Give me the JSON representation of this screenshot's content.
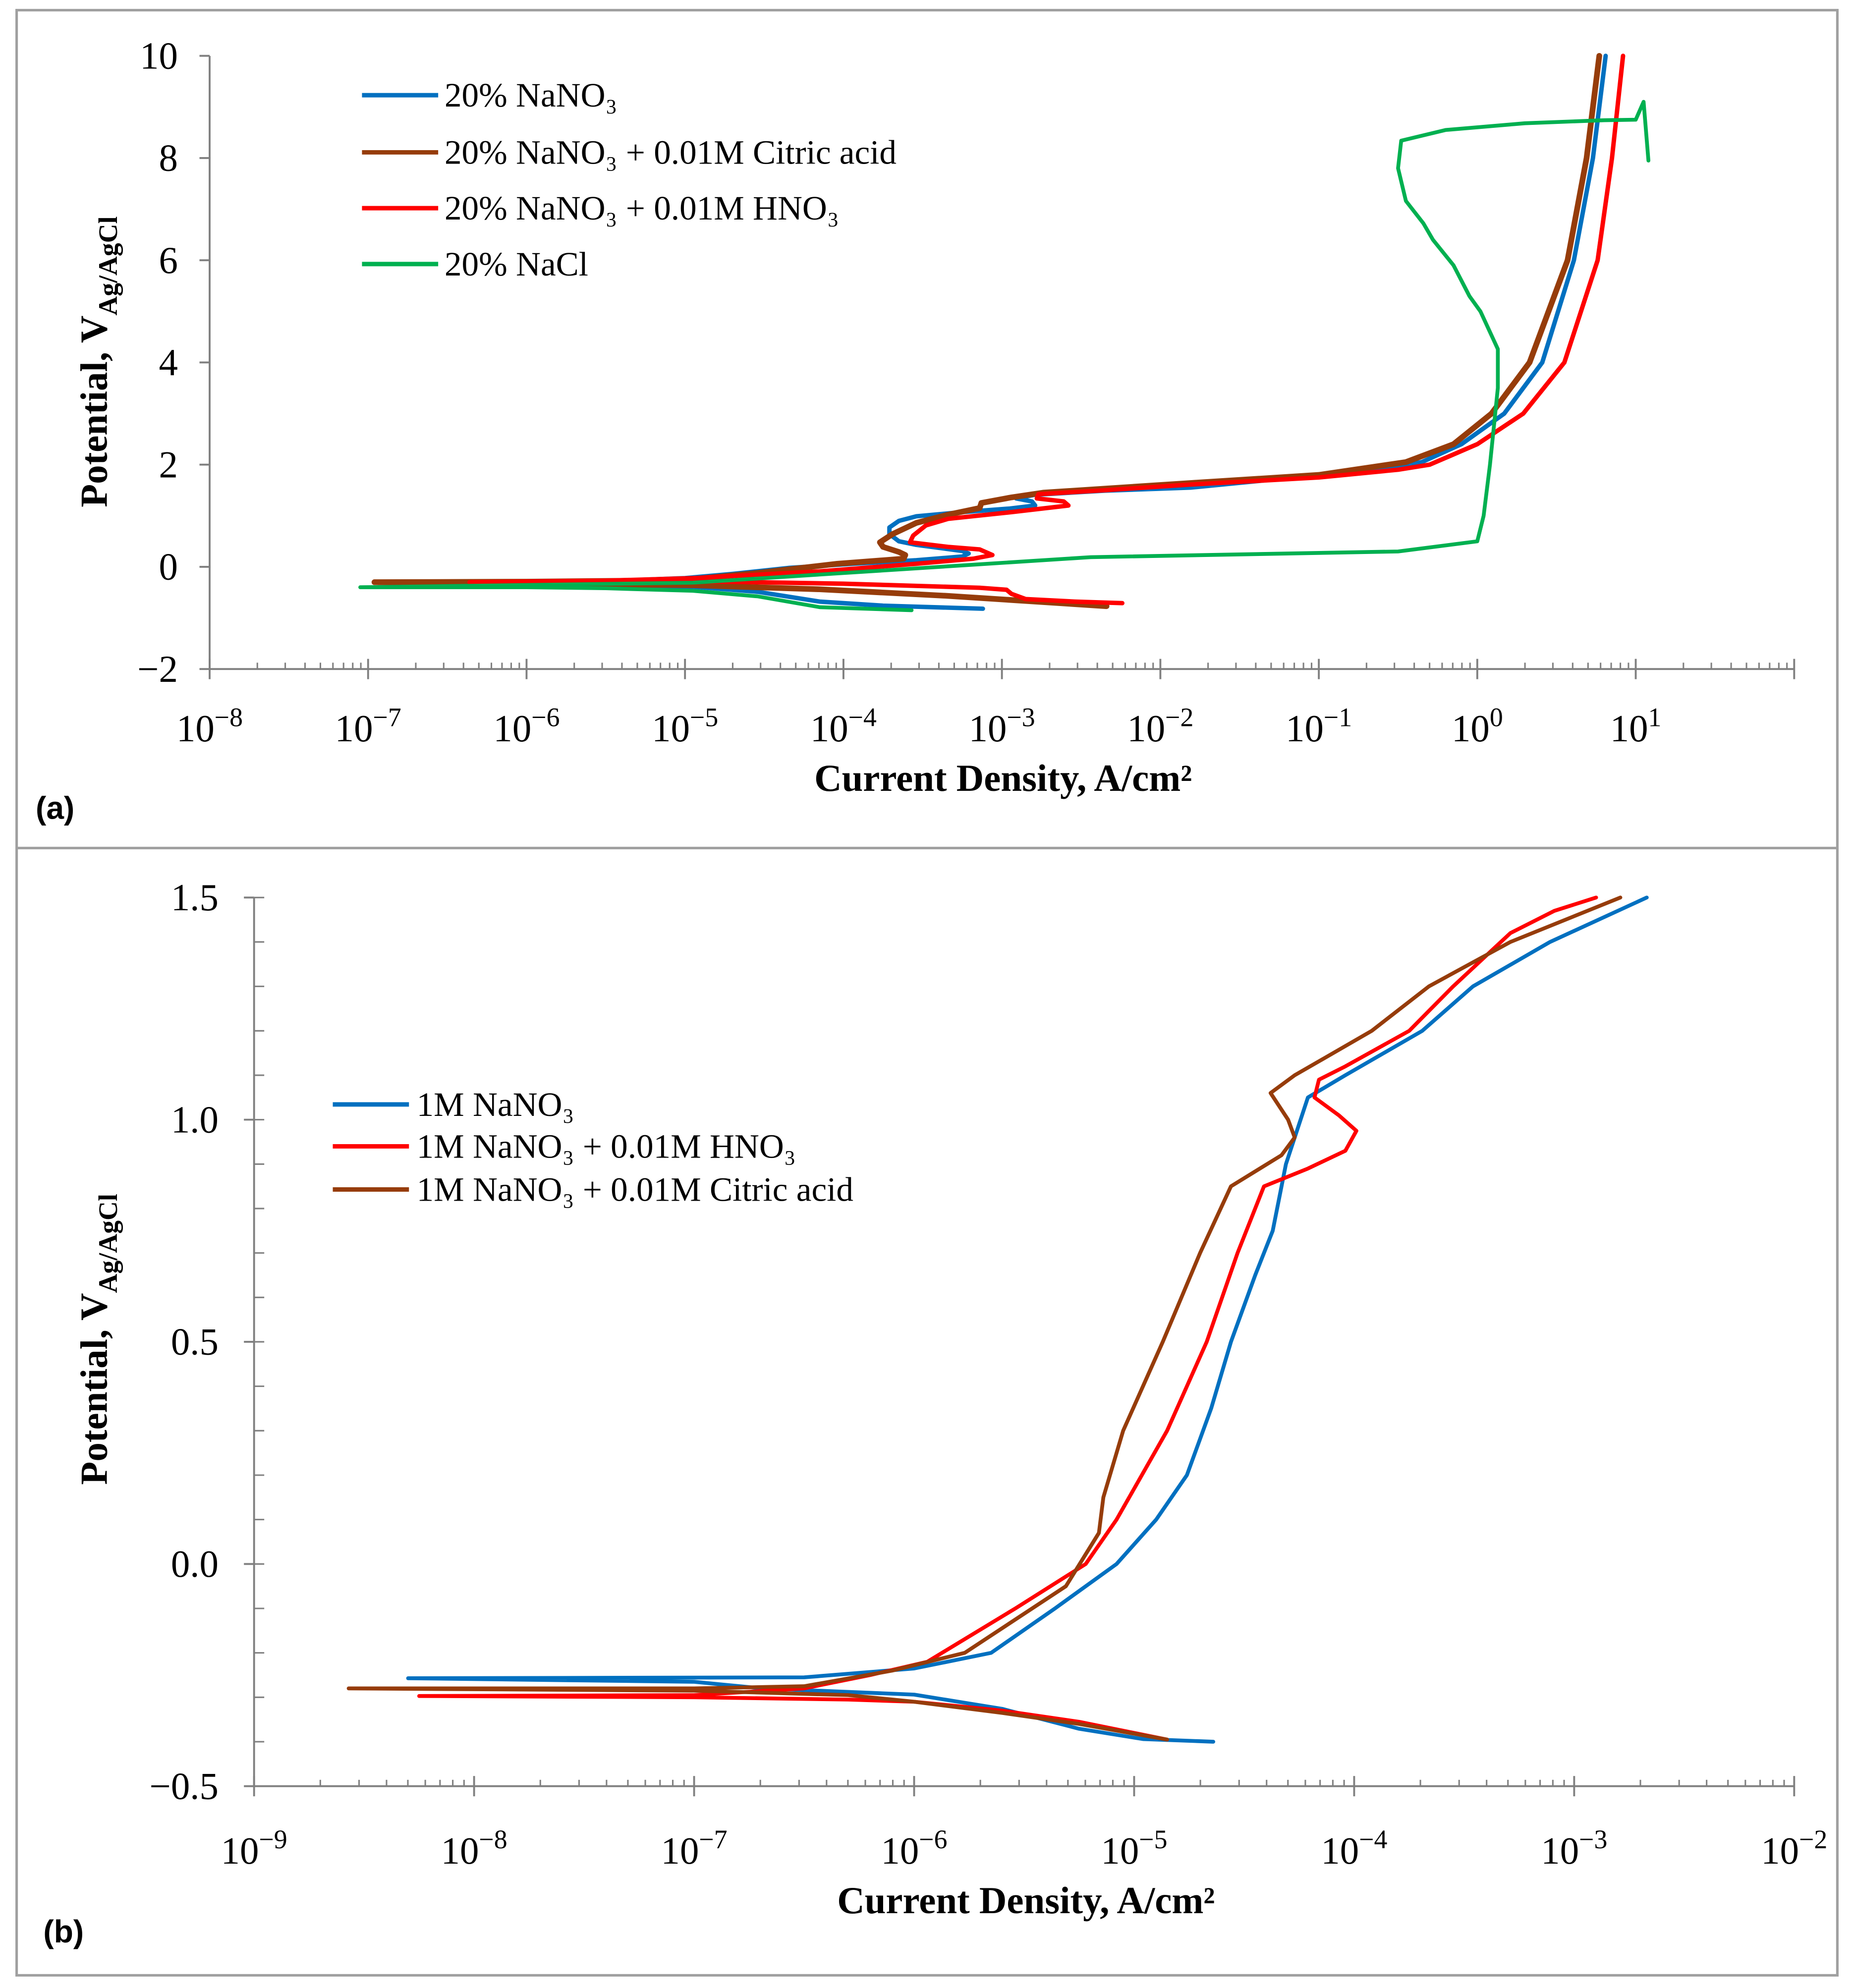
{
  "colors": {
    "blue": "#0070C0",
    "brown": "#963C0A",
    "red": "#FF0000",
    "green": "#00B050",
    "frame": "#A0A0A0",
    "axis": "#808080"
  },
  "chart_data": [
    {
      "type": "line",
      "panel_label": "(a)",
      "xlabel": "Current Density, A/cm²",
      "ylabel_main": "Potential, V",
      "ylabel_sub": "Ag/AgCl",
      "x_scale": "log10",
      "xlim_log10": [
        -8,
        2
      ],
      "ylim": [
        -2,
        10
      ],
      "y_ticks": [
        "−2",
        "0",
        "2",
        "4",
        "6",
        "8",
        "10"
      ],
      "y_tick_values": [
        -2,
        0,
        2,
        4,
        6,
        8,
        10
      ],
      "x_tick_base": "10",
      "x_tick_exponents": [
        "−8",
        "−7",
        "−6",
        "−5",
        "−4",
        "−3",
        "−2",
        "−1",
        "0",
        "1"
      ],
      "x_tick_values_log10": [
        -8,
        -7,
        -6,
        -5,
        -4,
        -3,
        -2,
        -1,
        0,
        1
      ],
      "legend_placement": "top-left",
      "series": [
        {
          "name": "20% NaNO₃",
          "color_key": "blue",
          "points": [
            [
              -3.12,
              -0.82
            ],
            [
              -3.75,
              -0.76
            ],
            [
              -4.15,
              -0.68
            ],
            [
              -4.54,
              -0.49
            ],
            [
              -4.95,
              -0.39
            ],
            [
              -5.5,
              -0.36
            ],
            [
              -6.4,
              -0.33
            ],
            [
              -6.4,
              -0.3
            ],
            [
              -5.5,
              -0.28
            ],
            [
              -5,
              -0.22
            ],
            [
              -4.7,
              -0.14
            ],
            [
              -4.34,
              -0.02
            ],
            [
              -3.94,
              0.06
            ],
            [
              -3.54,
              0.13
            ],
            [
              -3.25,
              0.2
            ],
            [
              -3.21,
              0.26
            ],
            [
              -3.25,
              0.31
            ],
            [
              -3.54,
              0.43
            ],
            [
              -3.65,
              0.5
            ],
            [
              -3.71,
              0.64
            ],
            [
              -3.71,
              0.77
            ],
            [
              -3.65,
              0.9
            ],
            [
              -3.54,
              0.99
            ],
            [
              -3.25,
              1.07
            ],
            [
              -2.95,
              1.14
            ],
            [
              -2.79,
              1.2
            ],
            [
              -2.81,
              1.28
            ],
            [
              -2.91,
              1.34
            ],
            [
              -2.79,
              1.41
            ],
            [
              -2.35,
              1.49
            ],
            [
              -1.81,
              1.55
            ],
            [
              -0.99,
              1.8
            ],
            [
              -0.6,
              1.9
            ],
            [
              -0.35,
              2.05
            ],
            [
              -0.1,
              2.4
            ],
            [
              0.17,
              3
            ],
            [
              0.41,
              4
            ],
            [
              0.61,
              6
            ],
            [
              0.73,
              8
            ],
            [
              0.81,
              10
            ]
          ]
        },
        {
          "name": "20% NaNO₃ + 0.01M Citric acid",
          "color_key": "brown",
          "points": [
            [
              -2.34,
              -0.77
            ],
            [
              -3.34,
              -0.57
            ],
            [
              -4.15,
              -0.44
            ],
            [
              -4.95,
              -0.36
            ],
            [
              -6,
              -0.32
            ],
            [
              -6.96,
              -0.3
            ],
            [
              -6,
              -0.29
            ],
            [
              -5.3,
              -0.27
            ],
            [
              -4.95,
              -0.24
            ],
            [
              -4.54,
              -0.12
            ],
            [
              -4.04,
              0.06
            ],
            [
              -3.62,
              0.16
            ],
            [
              -3.61,
              0.23
            ],
            [
              -3.65,
              0.29
            ],
            [
              -3.75,
              0.39
            ],
            [
              -3.77,
              0.48
            ],
            [
              -3.69,
              0.64
            ],
            [
              -3.54,
              0.86
            ],
            [
              -3.34,
              1.02
            ],
            [
              -3.14,
              1.15
            ],
            [
              -3.13,
              1.25
            ],
            [
              -2.94,
              1.36
            ],
            [
              -2.74,
              1.45
            ],
            [
              -1.81,
              1.64
            ],
            [
              -1,
              1.8
            ],
            [
              -0.45,
              2.05
            ],
            [
              -0.15,
              2.4
            ],
            [
              0.09,
              3
            ],
            [
              0.33,
              4
            ],
            [
              0.57,
              6
            ],
            [
              0.69,
              8
            ],
            [
              0.77,
              10
            ]
          ]
        },
        {
          "name": "20% NaNO₃ + 0.01M HNO₃",
          "color_key": "red",
          "points": [
            [
              -2.24,
              -0.71
            ],
            [
              -2.54,
              -0.68
            ],
            [
              -2.85,
              -0.63
            ],
            [
              -2.94,
              -0.53
            ],
            [
              -2.97,
              -0.45
            ],
            [
              -3.14,
              -0.41
            ],
            [
              -4,
              -0.33
            ],
            [
              -4.95,
              -0.28
            ],
            [
              -5.5,
              -0.29
            ],
            [
              -6.36,
              -0.3
            ],
            [
              -5.5,
              -0.27
            ],
            [
              -4.95,
              -0.22
            ],
            [
              -4.15,
              -0.09
            ],
            [
              -3.54,
              0.06
            ],
            [
              -3.18,
              0.16
            ],
            [
              -3.06,
              0.23
            ],
            [
              -3.14,
              0.34
            ],
            [
              -3.34,
              0.39
            ],
            [
              -3.58,
              0.48
            ],
            [
              -3.56,
              0.61
            ],
            [
              -3.48,
              0.81
            ],
            [
              -3.34,
              0.94
            ],
            [
              -2.94,
              1.07
            ],
            [
              -2.58,
              1.2
            ],
            [
              -2.61,
              1.28
            ],
            [
              -2.78,
              1.34
            ],
            [
              -2.77,
              1.42
            ],
            [
              -2.34,
              1.5
            ],
            [
              -1.81,
              1.61
            ],
            [
              -1,
              1.75
            ],
            [
              -0.5,
              1.9
            ],
            [
              -0.3,
              2.0
            ],
            [
              0,
              2.4
            ],
            [
              0.29,
              3
            ],
            [
              0.55,
              4
            ],
            [
              0.76,
              6
            ],
            [
              0.85,
              8
            ],
            [
              0.92,
              10
            ]
          ]
        },
        {
          "name": "20% NaCl",
          "color_key": "green",
          "points": [
            [
              -3.57,
              -0.85
            ],
            [
              -4.15,
              -0.79
            ],
            [
              -4.54,
              -0.58
            ],
            [
              -4.95,
              -0.47
            ],
            [
              -5.5,
              -0.42
            ],
            [
              -6,
              -0.4
            ],
            [
              -7.05,
              -0.4
            ],
            [
              -4.95,
              -0.31
            ],
            [
              -2.44,
              0.19
            ],
            [
              -0.5,
              0.3
            ],
            [
              0,
              0.5
            ],
            [
              0.04,
              1.0
            ],
            [
              0.08,
              2
            ],
            [
              0.13,
              3.5
            ],
            [
              0.13,
              4.26
            ],
            [
              0.02,
              5.0
            ],
            [
              -0.05,
              5.3
            ],
            [
              -0.15,
              5.9
            ],
            [
              -0.28,
              6.4
            ],
            [
              -0.34,
              6.72
            ],
            [
              -0.45,
              7.16
            ],
            [
              -0.5,
              7.8
            ],
            [
              -0.48,
              8.34
            ],
            [
              -0.2,
              8.55
            ],
            [
              0.3,
              8.68
            ],
            [
              0.8,
              8.74
            ],
            [
              1.0,
              8.75
            ],
            [
              1.05,
              9.1
            ],
            [
              1.08,
              7.95
            ]
          ]
        }
      ]
    },
    {
      "type": "line",
      "panel_label": "(b)",
      "xlabel": "Current Density, A/cm²",
      "ylabel_main": "Potential, V",
      "ylabel_sub": "Ag/AgCl",
      "x_scale": "log10",
      "xlim_log10": [
        -9,
        -2
      ],
      "ylim": [
        -0.5,
        1.5
      ],
      "y_ticks": [
        "−0.5",
        "0.0",
        "0.5",
        "1.0",
        "1.5"
      ],
      "y_tick_values": [
        -0.5,
        0,
        0.5,
        1.0,
        1.5
      ],
      "x_tick_base": "10",
      "x_tick_exponents": [
        "−9",
        "−8",
        "−7",
        "−6",
        "−5",
        "−4",
        "−3",
        "−2"
      ],
      "x_tick_values_log10": [
        -9,
        -8,
        -7,
        -6,
        -5,
        -4,
        -3,
        -2
      ],
      "legend_placement": "center-left",
      "series": [
        {
          "name": "1M NaNO₃",
          "color_key": "blue",
          "points": [
            [
              -4.64,
              -0.4
            ],
            [
              -4.96,
              -0.394
            ],
            [
              -5.25,
              -0.371
            ],
            [
              -5.6,
              -0.326
            ],
            [
              -6.0,
              -0.294
            ],
            [
              -6.69,
              -0.28
            ],
            [
              -7,
              -0.265
            ],
            [
              -8.3,
              -0.257
            ],
            [
              -6.5,
              -0.255
            ],
            [
              -6.0,
              -0.235
            ],
            [
              -5.65,
              -0.2
            ],
            [
              -5.36,
              -0.1
            ],
            [
              -5.08,
              0.0
            ],
            [
              -4.9,
              0.1
            ],
            [
              -4.76,
              0.2
            ],
            [
              -4.65,
              0.35
            ],
            [
              -4.56,
              0.5
            ],
            [
              -4.45,
              0.65
            ],
            [
              -4.37,
              0.75
            ],
            [
              -4.31,
              0.9
            ],
            [
              -4.21,
              1.05
            ],
            [
              -4.04,
              1.1
            ],
            [
              -3.69,
              1.2
            ],
            [
              -3.46,
              1.3
            ],
            [
              -3.11,
              1.4
            ],
            [
              -2.67,
              1.5
            ]
          ]
        },
        {
          "name": "1M NaNO₃ + 0.01M HNO₃",
          "color_key": "red",
          "points": [
            [
              -4.85,
              -0.395
            ],
            [
              -5.25,
              -0.355
            ],
            [
              -5.6,
              -0.33
            ],
            [
              -6,
              -0.31
            ],
            [
              -6.3,
              -0.305
            ],
            [
              -7,
              -0.3
            ],
            [
              -8.25,
              -0.297
            ],
            [
              -7,
              -0.295
            ],
            [
              -6.5,
              -0.28
            ],
            [
              -6.2,
              -0.25
            ],
            [
              -5.94,
              -0.22
            ],
            [
              -5.54,
              -0.1
            ],
            [
              -5.22,
              0.0
            ],
            [
              -5.08,
              0.1
            ],
            [
              -4.85,
              0.3
            ],
            [
              -4.67,
              0.5
            ],
            [
              -4.53,
              0.7
            ],
            [
              -4.41,
              0.85
            ],
            [
              -4.21,
              0.89
            ],
            [
              -4.04,
              0.93
            ],
            [
              -3.99,
              0.975
            ],
            [
              -4.07,
              1.01
            ],
            [
              -4.18,
              1.05
            ],
            [
              -4.16,
              1.09
            ],
            [
              -4.04,
              1.12
            ],
            [
              -3.75,
              1.2
            ],
            [
              -3.55,
              1.3
            ],
            [
              -3.29,
              1.42
            ],
            [
              -3.09,
              1.47
            ],
            [
              -2.9,
              1.5
            ]
          ]
        },
        {
          "name": "1M NaNO₃ + 0.01M Citric acid",
          "color_key": "brown",
          "points": [
            [
              -4.85,
              -0.395
            ],
            [
              -5.25,
              -0.36
            ],
            [
              -5.6,
              -0.335
            ],
            [
              -6,
              -0.31
            ],
            [
              -6.3,
              -0.295
            ],
            [
              -7,
              -0.285
            ],
            [
              -8.57,
              -0.28
            ],
            [
              -7,
              -0.28
            ],
            [
              -6.5,
              -0.275
            ],
            [
              -6.1,
              -0.24
            ],
            [
              -5.77,
              -0.2
            ],
            [
              -5.31,
              -0.05
            ],
            [
              -5.16,
              0.07
            ],
            [
              -5.14,
              0.15
            ],
            [
              -5.05,
              0.3
            ],
            [
              -4.87,
              0.5
            ],
            [
              -4.7,
              0.7
            ],
            [
              -4.56,
              0.85
            ],
            [
              -4.33,
              0.92
            ],
            [
              -4.27,
              0.96
            ],
            [
              -4.3,
              1.0
            ],
            [
              -4.38,
              1.06
            ],
            [
              -4.27,
              1.1
            ],
            [
              -3.92,
              1.2
            ],
            [
              -3.66,
              1.3
            ],
            [
              -3.29,
              1.4
            ],
            [
              -2.79,
              1.5
            ]
          ]
        }
      ]
    }
  ]
}
